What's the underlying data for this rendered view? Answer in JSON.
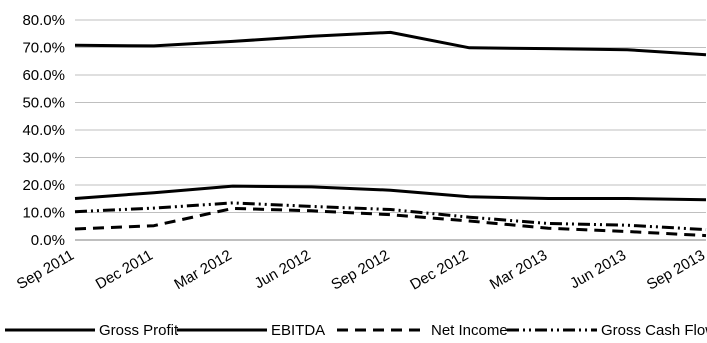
{
  "chart_data": {
    "type": "line",
    "title": "",
    "xlabel": "",
    "ylabel": "",
    "ylim": [
      0,
      80
    ],
    "y_tick_values": [
      0,
      10,
      20,
      30,
      40,
      50,
      60,
      70,
      80
    ],
    "y_tick_labels": [
      "0.0%",
      "10.0%",
      "20.0%",
      "30.0%",
      "40.0%",
      "50.0%",
      "60.0%",
      "70.0%",
      "80.0%"
    ],
    "categories": [
      "Sep 2011",
      "Dec 2011",
      "Mar 2012",
      "Jun 2012",
      "Sep 2012",
      "Dec 2012",
      "Mar 2013",
      "Jun 2013",
      "Sep 2013"
    ],
    "grid": "horizontal",
    "legend_position": "bottom",
    "series": [
      {
        "name": "Gross Profit",
        "style": "solid",
        "color": "#000000",
        "values": [
          70.8,
          70.6,
          72.2,
          74.1,
          75.5,
          69.9,
          69.6,
          69.2,
          67.4
        ]
      },
      {
        "name": "EBITDA",
        "style": "solid",
        "color": "#000000",
        "values": [
          15.1,
          17.2,
          19.6,
          19.3,
          18.1,
          15.7,
          15.1,
          15.1,
          14.6
        ]
      },
      {
        "name": "Net Income",
        "style": "dashed",
        "color": "#000000",
        "values": [
          4.0,
          5.2,
          11.5,
          10.6,
          9.2,
          6.9,
          4.3,
          3.1,
          1.6
        ]
      },
      {
        "name": "Gross Cash Flow",
        "style": "dash-dot-dot",
        "color": "#000000",
        "values": [
          10.3,
          11.6,
          13.5,
          12.2,
          11.1,
          8.3,
          6.0,
          5.4,
          3.8
        ]
      }
    ]
  }
}
